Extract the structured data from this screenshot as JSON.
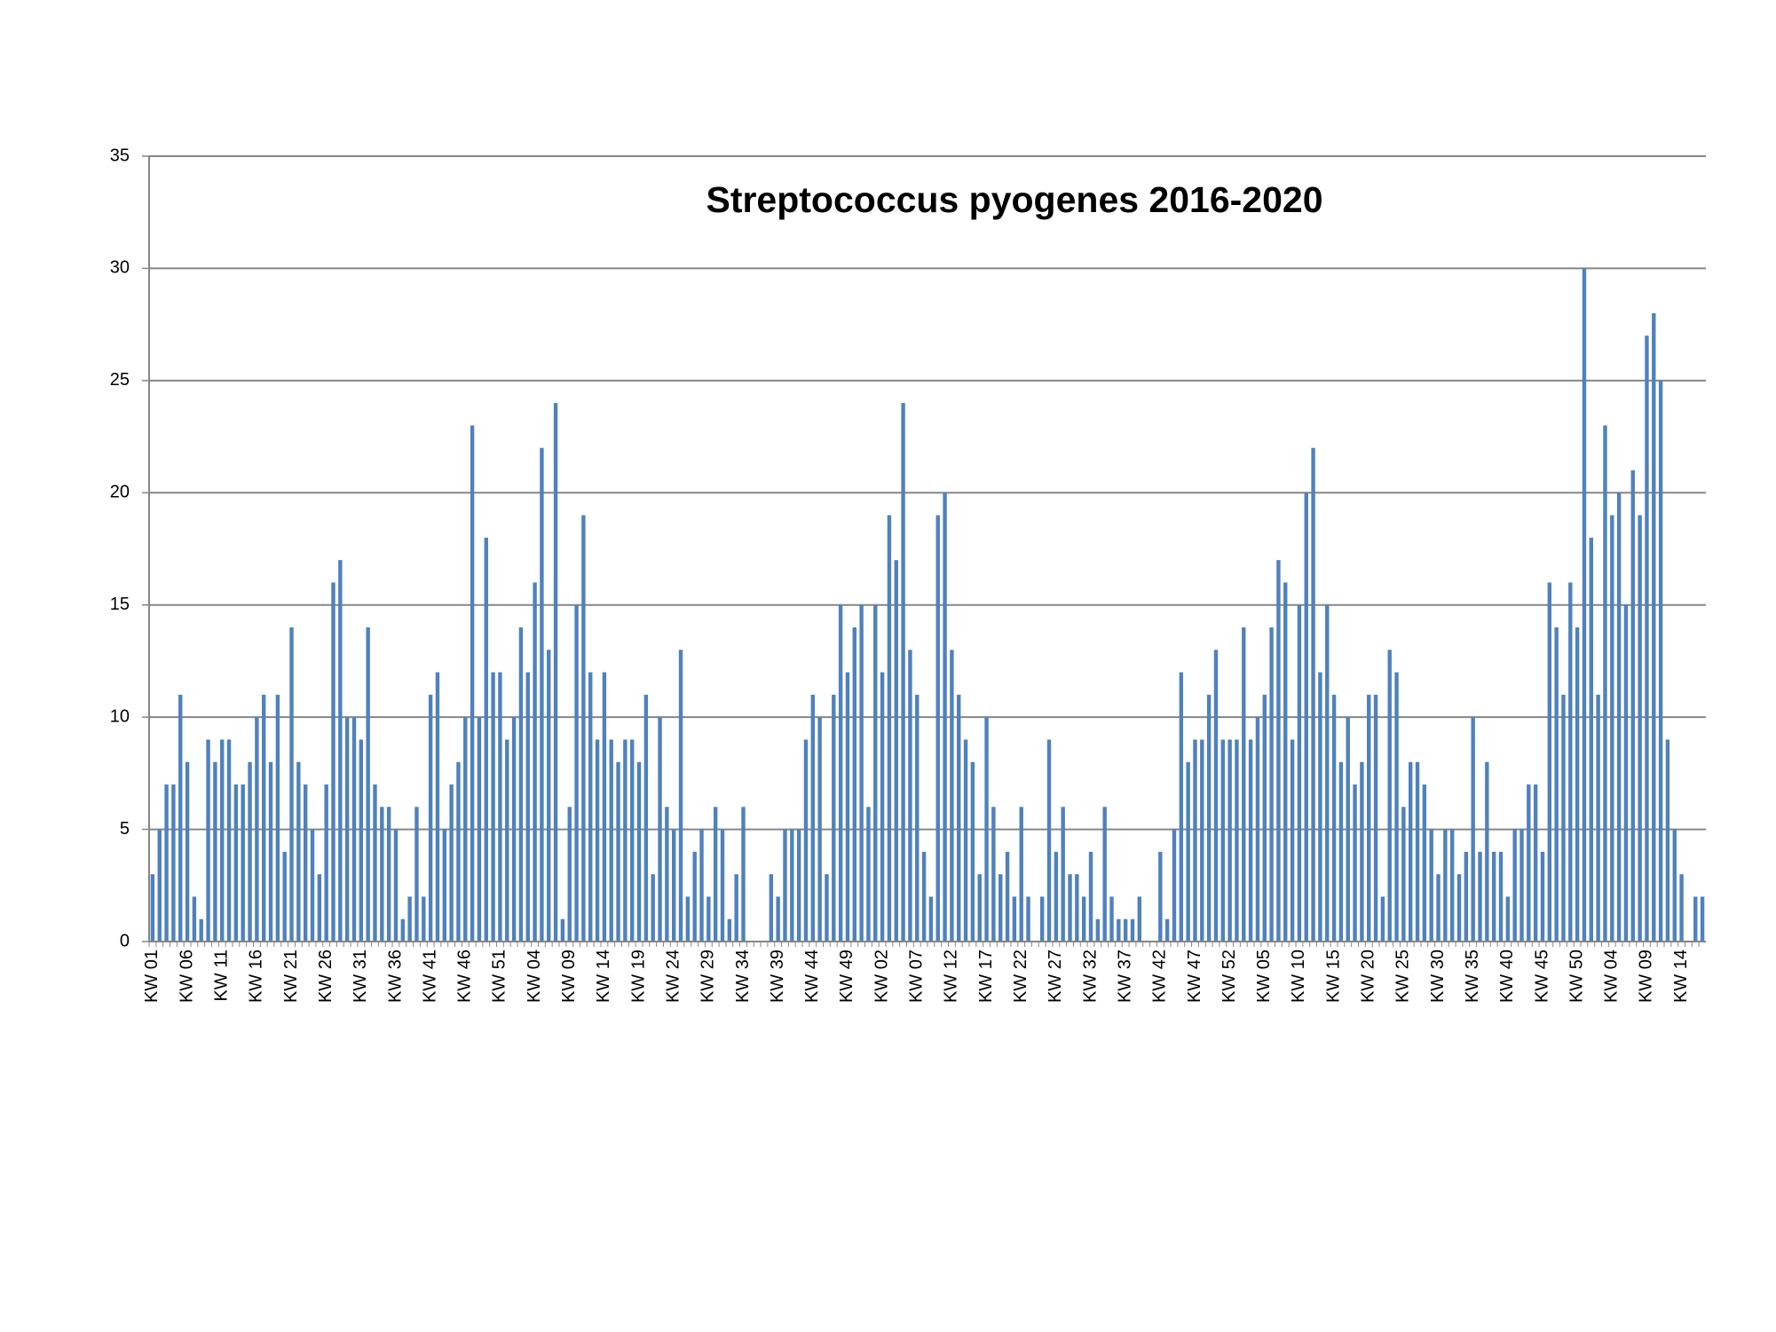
{
  "chart_data": {
    "type": "bar",
    "title": "Streptococcus pyogenes 2016-2020",
    "categories": [
      "KW 01",
      null,
      null,
      null,
      null,
      "KW 06",
      null,
      null,
      null,
      null,
      "KW 11",
      null,
      null,
      null,
      null,
      "KW 16",
      null,
      null,
      null,
      null,
      "KW 21",
      null,
      null,
      null,
      null,
      "KW 26",
      null,
      null,
      null,
      null,
      "KW 31",
      null,
      null,
      null,
      null,
      "KW 36",
      null,
      null,
      null,
      null,
      "KW 41",
      null,
      null,
      null,
      null,
      "KW 46",
      null,
      null,
      null,
      null,
      "KW 51",
      null,
      null,
      null,
      null,
      "KW 04",
      null,
      null,
      null,
      null,
      "KW 09",
      null,
      null,
      null,
      null,
      "KW 14",
      null,
      null,
      null,
      null,
      "KW 19",
      null,
      null,
      null,
      null,
      "KW 24",
      null,
      null,
      null,
      null,
      "KW 29",
      null,
      null,
      null,
      null,
      "KW 34",
      null,
      null,
      null,
      null,
      "KW 39",
      null,
      null,
      null,
      null,
      "KW 44",
      null,
      null,
      null,
      null,
      "KW 49",
      null,
      null,
      null,
      null,
      "KW 02",
      null,
      null,
      null,
      null,
      "KW 07",
      null,
      null,
      null,
      null,
      "KW 12",
      null,
      null,
      null,
      null,
      "KW 17",
      null,
      null,
      null,
      null,
      "KW 22",
      null,
      null,
      null,
      null,
      "KW 27",
      null,
      null,
      null,
      null,
      "KW 32",
      null,
      null,
      null,
      null,
      "KW 37",
      null,
      null,
      null,
      null,
      "KW 42",
      null,
      null,
      null,
      null,
      "KW 47",
      null,
      null,
      null,
      null,
      "KW 52",
      null,
      null,
      null,
      null,
      "KW 05",
      null,
      null,
      null,
      null,
      "KW 10",
      null,
      null,
      null,
      null,
      "KW 15",
      null,
      null,
      null,
      null,
      "KW 20",
      null,
      null,
      null,
      null,
      "KW 25",
      null,
      null,
      null,
      null,
      "KW 30",
      null,
      null,
      null,
      null,
      "KW 35",
      null,
      null,
      null,
      null,
      "KW 40",
      null,
      null,
      null,
      null,
      "KW 45",
      null,
      null,
      null,
      null,
      "KW 50",
      null,
      null,
      null,
      null,
      "KW 04",
      null,
      null,
      null,
      null,
      "KW 09",
      null,
      null,
      null,
      null,
      "KW 14",
      null,
      null,
      null
    ],
    "values": [
      3,
      5,
      7,
      7,
      11,
      8,
      2,
      1,
      9,
      8,
      9,
      9,
      7,
      7,
      8,
      10,
      11,
      8,
      11,
      4,
      14,
      8,
      7,
      5,
      3,
      7,
      16,
      17,
      10,
      10,
      9,
      14,
      7,
      6,
      6,
      5,
      1,
      2,
      6,
      2,
      11,
      12,
      5,
      7,
      8,
      10,
      23,
      10,
      18,
      12,
      12,
      9,
      10,
      14,
      12,
      16,
      22,
      13,
      24,
      1,
      6,
      15,
      19,
      12,
      9,
      12,
      9,
      8,
      9,
      9,
      8,
      11,
      3,
      10,
      6,
      5,
      13,
      2,
      4,
      5,
      2,
      6,
      5,
      1,
      3,
      6,
      0,
      0,
      0,
      3,
      2,
      5,
      5,
      5,
      9,
      11,
      10,
      3,
      11,
      15,
      12,
      14,
      15,
      6,
      15,
      12,
      19,
      17,
      24,
      13,
      11,
      4,
      2,
      19,
      20,
      13,
      11,
      9,
      8,
      3,
      10,
      6,
      3,
      4,
      2,
      6,
      2,
      0,
      2,
      9,
      4,
      6,
      3,
      3,
      2,
      4,
      1,
      6,
      2,
      1,
      1,
      1,
      2,
      0,
      0,
      4,
      1,
      5,
      12,
      8,
      9,
      9,
      11,
      13,
      9,
      9,
      9,
      14,
      9,
      10,
      11,
      14,
      17,
      16,
      9,
      15,
      20,
      22,
      12,
      15,
      11,
      8,
      10,
      7,
      8,
      11,
      11,
      2,
      13,
      12,
      6,
      8,
      8,
      7,
      5,
      3,
      5,
      5,
      3,
      4,
      10,
      4,
      8,
      4,
      4,
      2,
      5,
      5,
      7,
      7,
      4,
      16,
      14,
      11,
      16,
      14,
      30,
      18,
      11,
      23,
      19,
      20,
      15,
      21,
      19,
      27,
      28,
      25,
      9,
      5,
      3,
      0,
      2,
      2
    ],
    "color": "#4f81bd",
    "ylim": [
      0,
      35
    ],
    "yticks": [
      0,
      5,
      10,
      15,
      20,
      25,
      30,
      35
    ],
    "grid": true
  }
}
